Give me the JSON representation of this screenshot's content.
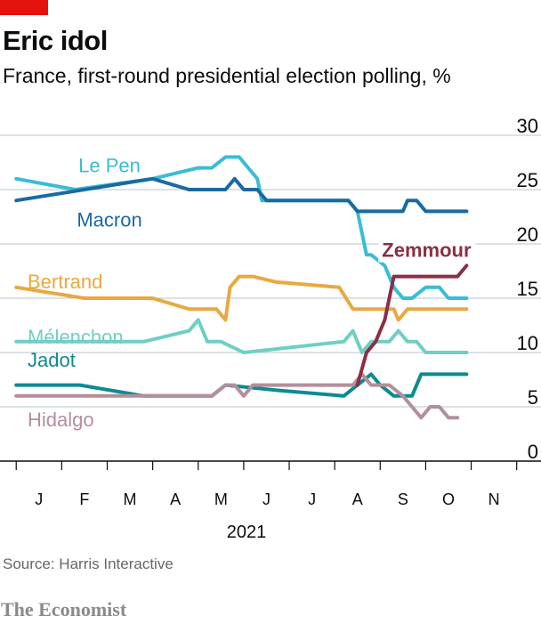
{
  "header": {
    "title": "Eric idol",
    "subtitle": "France, first-round presidential election polling, %"
  },
  "footer": {
    "source": "Source: Harris Interactive",
    "brand": "The Economist"
  },
  "chart_data": {
    "type": "line",
    "title": "Eric idol",
    "subtitle": "France, first-round presidential election polling, %",
    "xlabel": "2021",
    "ylabel": "",
    "ylim": [
      0,
      30
    ],
    "xlim": [
      -0.2,
      10.4
    ],
    "y_ticks": [
      0,
      5,
      10,
      15,
      20,
      25,
      30
    ],
    "grid": true,
    "y_axis_side": "right",
    "month_labels": [
      "J",
      "F",
      "M",
      "A",
      "M",
      "J",
      "J",
      "A",
      "S",
      "O",
      "N"
    ],
    "month_positions": [
      0.5,
      1.5,
      2.5,
      3.5,
      4.5,
      5.5,
      6.5,
      7.5,
      8.5,
      9.5,
      10.5
    ],
    "year_label": "2021",
    "series": [
      {
        "name": "Le Pen",
        "color": "#39bdd6",
        "x": [
          0,
          1.3,
          3.0,
          4.0,
          4.3,
          4.6,
          4.9,
          5.1,
          5.3,
          5.4,
          5.9,
          7.3,
          7.5,
          7.7,
          7.8,
          8.1,
          8.3,
          8.5,
          8.7,
          9.0,
          9.3,
          9.5,
          9.7,
          9.9
        ],
        "values": [
          26,
          25,
          26,
          27,
          27,
          28,
          28,
          27,
          26,
          24,
          24,
          24,
          23,
          19,
          19,
          18,
          16,
          15,
          15,
          16,
          16,
          15,
          15,
          15
        ]
      },
      {
        "name": "Macron",
        "color": "#1a6aa2",
        "x": [
          0,
          3.0,
          3.8,
          4.6,
          4.8,
          5.0,
          5.3,
          5.5,
          7.3,
          7.5,
          8.3,
          8.5,
          8.6,
          8.8,
          9.0,
          9.2,
          9.5,
          9.7,
          9.9
        ],
        "values": [
          24,
          26,
          25,
          25,
          26,
          25,
          25,
          24,
          24,
          23,
          23,
          23,
          24,
          24,
          23,
          23,
          23,
          23,
          23
        ]
      },
      {
        "name": "Bertrand",
        "color": "#e8a940",
        "x": [
          0,
          1.5,
          3.0,
          3.8,
          4.4,
          4.6,
          4.7,
          4.9,
          5.2,
          5.7,
          7.1,
          7.4,
          7.6,
          8.0,
          8.3,
          8.4,
          8.6,
          8.8,
          9.2,
          9.7,
          9.9
        ],
        "values": [
          16,
          15,
          15,
          14,
          14,
          13,
          16,
          17,
          17,
          16.5,
          16,
          14,
          14,
          14,
          14,
          13,
          14,
          14,
          14,
          14,
          14
        ]
      },
      {
        "name": "Mélenchon",
        "color": "#6fcfc4",
        "x": [
          0,
          2.8,
          3.8,
          4.0,
          4.2,
          4.5,
          5.0,
          7.2,
          7.4,
          7.6,
          7.8,
          8.0,
          8.2,
          8.4,
          8.6,
          8.8,
          9.0,
          9.3,
          9.7,
          9.9
        ],
        "values": [
          11,
          11,
          12,
          13,
          11,
          11,
          10,
          11,
          12,
          10,
          11,
          11,
          11,
          12,
          11,
          11,
          10,
          10,
          10,
          10
        ]
      },
      {
        "name": "Jadot",
        "color": "#0b8b93",
        "x": [
          0,
          1.4,
          2.8,
          3.7,
          4.3,
          4.6,
          5.8,
          7.2,
          7.5,
          7.8,
          8.0,
          8.3,
          8.5,
          8.7,
          8.9,
          9.2,
          9.5,
          9.7,
          9.9
        ],
        "values": [
          7,
          7,
          6,
          6,
          6,
          7,
          6.5,
          6,
          7,
          8,
          7,
          6,
          6,
          6,
          8,
          8,
          8,
          8,
          8
        ]
      },
      {
        "name": "Hidalgo",
        "color": "#b38f9b",
        "x": [
          0,
          4.0,
          4.3,
          4.6,
          4.8,
          5.0,
          5.2,
          7.2,
          7.4,
          7.6,
          7.8,
          8.0,
          8.2,
          8.5,
          8.7,
          8.9,
          9.1,
          9.3,
          9.5,
          9.7
        ],
        "values": [
          6,
          6,
          6,
          7,
          7,
          6,
          7,
          7,
          7,
          8,
          7,
          7,
          7,
          6,
          5,
          4,
          5,
          5,
          4,
          4
        ]
      },
      {
        "name": "Zemmour",
        "color": "#8c2e46",
        "x": [
          7.5,
          7.7,
          7.9,
          8.1,
          8.3,
          8.6,
          8.9,
          9.1,
          9.3,
          9.5,
          9.7,
          9.9
        ],
        "values": [
          7,
          10,
          11,
          13,
          17,
          17,
          17,
          17,
          17,
          17,
          17,
          18
        ]
      }
    ],
    "legend_placement": "direct labels on lines"
  }
}
